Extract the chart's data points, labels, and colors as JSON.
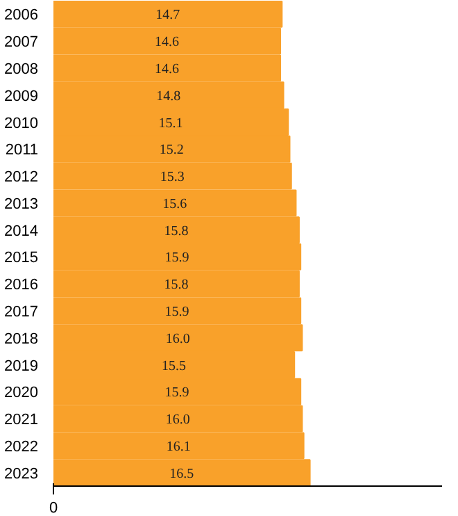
{
  "chart_data": {
    "type": "bar",
    "orientation": "horizontal",
    "categories": [
      "2006",
      "2007",
      "2008",
      "2009",
      "2010",
      "2011",
      "2012",
      "2013",
      "2014",
      "2015",
      "2016",
      "2017",
      "2018",
      "2019",
      "2020",
      "2021",
      "2022",
      "2023"
    ],
    "values": [
      14.7,
      14.6,
      14.6,
      14.8,
      15.1,
      15.2,
      15.3,
      15.6,
      15.8,
      15.9,
      15.8,
      15.9,
      16.0,
      15.5,
      15.9,
      16.0,
      16.1,
      16.5
    ],
    "value_labels": [
      "14.7",
      "14.6",
      "14.6",
      "14.8",
      "15.1",
      "15.2",
      "15.3",
      "15.6",
      "15.8",
      "15.9",
      "15.8",
      "15.9",
      "16.0",
      "15.5",
      "15.9",
      "16.0",
      "16.1",
      "16.5"
    ],
    "annotations": [
      "0"
    ],
    "color": "#f9a12a",
    "xlim": [
      0,
      25
    ],
    "grid": false
  }
}
